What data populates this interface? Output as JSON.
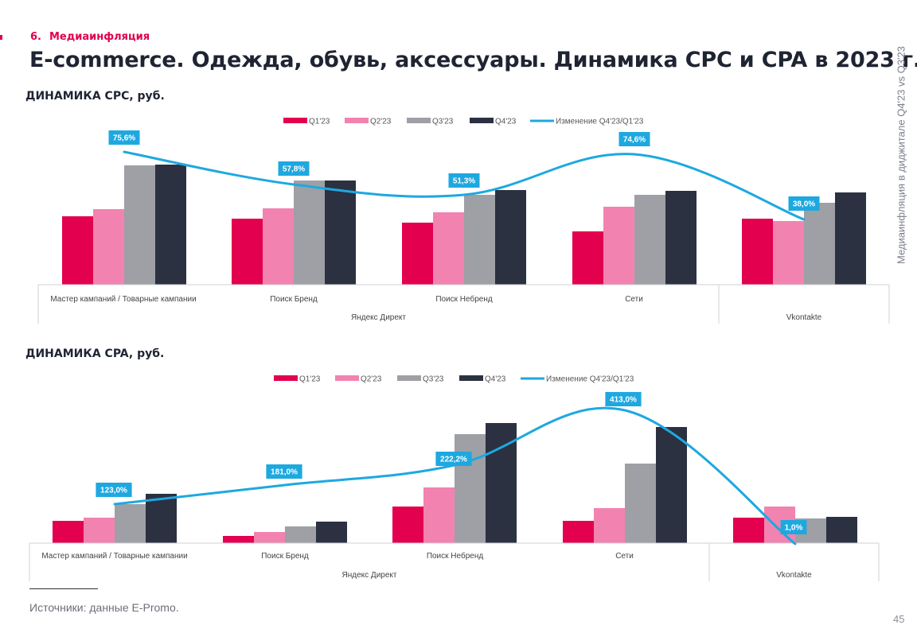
{
  "header": {
    "section_number": "6.",
    "section_label": "Медиаинфляция",
    "title": "E-commerce. Одежда, обувь, аксессуары. Динамика CPC и CPA в 2023 г.",
    "side_label": "Медиаинфляция в диджитале Q4'23 vs Q3'23"
  },
  "footer": {
    "source": "Источники: данные E-Promo.",
    "page_number": "45"
  },
  "colors": {
    "q1": "#e3004f",
    "q2": "#f283b0",
    "q3": "#9ea0a5",
    "q4": "#2b3141",
    "line": "#1ea8e0",
    "label_bg": "#1ea8e0",
    "accent": "#e0004d"
  },
  "chart_data": [
    {
      "type": "bar",
      "subtitle": "ДИНАМИКА CPC, руб.",
      "legend": [
        "Q1'23",
        "Q2'23",
        "Q3'23",
        "Q4'23",
        "Изменение Q4'23/Q1'23"
      ],
      "categories": [
        "Мастер кампаний / Товарные кампании",
        "Поиск Бренд",
        "Поиск Небренд",
        "Сети",
        "Vkontakte"
      ],
      "groups": [
        {
          "label": "Яндекс Директ",
          "categories": [
            "Мастер кампаний / Товарные кампании",
            "Поиск Бренд",
            "Поиск Небренд",
            "Сети"
          ]
        },
        {
          "label": "Vkontakte",
          "categories": [
            "Vkontakte"
          ]
        }
      ],
      "series": [
        {
          "name": "Q1'23",
          "values": [
            86,
            83,
            78,
            67,
            83
          ]
        },
        {
          "name": "Q2'23",
          "values": [
            95,
            96,
            91,
            98,
            80
          ]
        },
        {
          "name": "Q3'23",
          "values": [
            150,
            131,
            113,
            113,
            103
          ]
        },
        {
          "name": "Q4'23",
          "values": [
            151,
            131,
            119,
            118,
            116
          ]
        }
      ],
      "change": {
        "name": "Изменение Q4'23/Q1'23",
        "values": [
          75.6,
          57.8,
          51.3,
          74.6,
          38.0
        ],
        "labels": [
          "75,6%",
          "57,8%",
          "51,3%",
          "74,6%",
          "38,0%"
        ]
      },
      "ylim": [
        0,
        160
      ]
    },
    {
      "type": "bar",
      "subtitle": "ДИНАМИКА CPA, руб.",
      "legend": [
        "Q1'23",
        "Q2'23",
        "Q3'23",
        "Q4'23",
        "Изменение Q4'23/Q1'23"
      ],
      "categories": [
        "Мастер кампаний / Товарные кампании",
        "Поиск Бренд",
        "Поиск Небренд",
        "Сети",
        "Vkontakte"
      ],
      "groups": [
        {
          "label": "Яндекс Директ",
          "categories": [
            "Мастер кампаний / Товарные кампании",
            "Поиск Бренд",
            "Поиск Небренд",
            "Сети"
          ]
        },
        {
          "label": "Vkontakte",
          "categories": [
            "Vkontakte"
          ]
        }
      ],
      "series": [
        {
          "name": "Q1'23",
          "values": [
            28,
            9,
            46,
            28,
            32
          ]
        },
        {
          "name": "Q2'23",
          "values": [
            32,
            14,
            70,
            44,
            46
          ]
        },
        {
          "name": "Q3'23",
          "values": [
            49,
            21,
            137,
            100,
            31
          ]
        },
        {
          "name": "Q4'23",
          "values": [
            62,
            27,
            151,
            146,
            33
          ]
        }
      ],
      "change": {
        "name": "Изменение Q4'23/Q1'23",
        "values": [
          123.0,
          181.0,
          222.2,
          413.0,
          1.0
        ],
        "labels": [
          "123,0%",
          "181,0%",
          "222,2%",
          "413,0%",
          "1,0%"
        ]
      },
      "ylim": [
        0,
        160
      ]
    }
  ]
}
